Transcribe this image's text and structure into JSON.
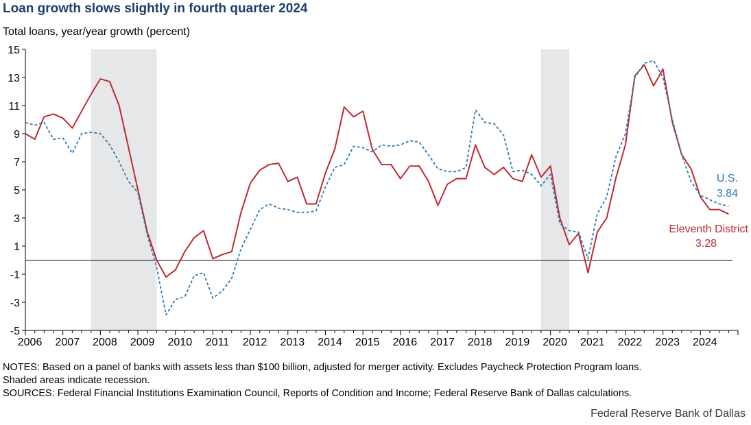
{
  "title": "Loan growth slows slightly in fourth quarter 2024",
  "subtitle": "Total loans, year/year growth (percent)",
  "notes": {
    "line1": "NOTES: Based on a panel of banks with assets less than $100 billion, adjusted for merger activity. Excludes Paycheck Protection Program loans.",
    "line2": "Shaded areas indicate recession.",
    "line3": "SOURCES: Federal Financial Institutions  Examination Council, Reports of Condition and Income; Federal Reserve Bank of Dallas calculations."
  },
  "brand": "Federal Reserve Bank of Dallas",
  "colors": {
    "us": "#2a78b8",
    "eleventh": "#c0282e",
    "recession": "#e6e7e9",
    "title": "#1f3d6e"
  },
  "chart_data": {
    "type": "line",
    "title": "Loan growth slows slightly in fourth quarter 2024",
    "ylabel": "Total loans, year/year growth (percent)",
    "ylim": [
      -5,
      15
    ],
    "xlim": [
      2006.0,
      2025.0
    ],
    "yticks": [
      "15",
      "13",
      "11",
      "9",
      "7",
      "5",
      "3",
      "1",
      "-1",
      "-3",
      "-5"
    ],
    "ytick_values": [
      15,
      13,
      11,
      9,
      7,
      5,
      3,
      1,
      -1,
      -3,
      -5
    ],
    "xticks": [
      "2006",
      "2007",
      "2008",
      "2009",
      "2010",
      "2011",
      "2012",
      "2013",
      "2014",
      "2015",
      "2016",
      "2017",
      "2018",
      "2019",
      "2020",
      "2021",
      "2022",
      "2023",
      "2024"
    ],
    "zero_line": 0,
    "recessions": [
      [
        2007.75,
        2009.5
      ],
      [
        2019.75,
        2020.5
      ]
    ],
    "series": [
      {
        "name": "U.S.",
        "end_label": "U.S.",
        "end_value": "3.84",
        "style": "dashed",
        "color": "#2a78b8",
        "x": [
          2006.0,
          2006.25,
          2006.5,
          2006.75,
          2007.0,
          2007.25,
          2007.5,
          2007.75,
          2008.0,
          2008.25,
          2008.5,
          2008.75,
          2009.0,
          2009.25,
          2009.5,
          2009.75,
          2010.0,
          2010.25,
          2010.5,
          2010.75,
          2011.0,
          2011.25,
          2011.5,
          2011.75,
          2012.0,
          2012.25,
          2012.5,
          2012.75,
          2013.0,
          2013.25,
          2013.5,
          2013.75,
          2014.0,
          2014.25,
          2014.5,
          2014.75,
          2015.0,
          2015.25,
          2015.5,
          2015.75,
          2016.0,
          2016.25,
          2016.5,
          2016.75,
          2017.0,
          2017.25,
          2017.5,
          2017.75,
          2018.0,
          2018.25,
          2018.5,
          2018.75,
          2019.0,
          2019.25,
          2019.5,
          2019.75,
          2020.0,
          2020.25,
          2020.5,
          2020.75,
          2021.0,
          2021.25,
          2021.5,
          2021.75,
          2022.0,
          2022.25,
          2022.5,
          2022.75,
          2023.0,
          2023.25,
          2023.5,
          2023.75,
          2024.0,
          2024.25,
          2024.5,
          2024.75
        ],
        "values": [
          9.8,
          9.6,
          9.8,
          8.6,
          8.7,
          7.6,
          9.0,
          9.1,
          9.0,
          8.2,
          7.0,
          5.6,
          4.8,
          1.8,
          -0.5,
          -3.9,
          -2.8,
          -2.6,
          -1.1,
          -0.9,
          -2.7,
          -2.2,
          -1.3,
          0.8,
          2.2,
          3.6,
          4.0,
          3.7,
          3.6,
          3.4,
          3.4,
          3.5,
          5.2,
          6.6,
          6.8,
          8.1,
          8.0,
          7.7,
          8.2,
          8.1,
          8.2,
          8.5,
          8.4,
          7.5,
          6.5,
          6.3,
          6.3,
          6.6,
          10.7,
          9.8,
          9.7,
          8.9,
          6.3,
          6.4,
          6.1,
          5.3,
          6.1,
          2.6,
          2.1,
          2.0,
          0.1,
          3.3,
          4.5,
          7.4,
          9.0,
          13.0,
          14.0,
          14.2,
          13.0,
          10.0,
          7.5,
          5.6,
          4.6,
          4.3,
          4.0,
          3.84
        ]
      },
      {
        "name": "Eleventh District",
        "end_label": "Eleventh District",
        "end_value": "3.28",
        "style": "solid",
        "color": "#c0282e",
        "x": [
          2006.0,
          2006.25,
          2006.5,
          2006.75,
          2007.0,
          2007.25,
          2007.5,
          2007.75,
          2008.0,
          2008.25,
          2008.5,
          2008.75,
          2009.0,
          2009.25,
          2009.5,
          2009.75,
          2010.0,
          2010.25,
          2010.5,
          2010.75,
          2011.0,
          2011.25,
          2011.5,
          2011.75,
          2012.0,
          2012.25,
          2012.5,
          2012.75,
          2013.0,
          2013.25,
          2013.5,
          2013.75,
          2014.0,
          2014.25,
          2014.5,
          2014.75,
          2015.0,
          2015.25,
          2015.5,
          2015.75,
          2016.0,
          2016.25,
          2016.5,
          2016.75,
          2017.0,
          2017.25,
          2017.5,
          2017.75,
          2018.0,
          2018.25,
          2018.5,
          2018.75,
          2019.0,
          2019.25,
          2019.5,
          2019.75,
          2020.0,
          2020.25,
          2020.5,
          2020.75,
          2021.0,
          2021.25,
          2021.5,
          2021.75,
          2022.0,
          2022.25,
          2022.5,
          2022.75,
          2023.0,
          2023.25,
          2023.5,
          2023.75,
          2024.0,
          2024.25,
          2024.5,
          2024.75
        ],
        "values": [
          9.0,
          8.6,
          10.2,
          10.4,
          10.1,
          9.4,
          10.6,
          11.8,
          12.9,
          12.7,
          11.0,
          8.0,
          5.0,
          2.0,
          0.0,
          -1.2,
          -0.7,
          0.6,
          1.6,
          2.1,
          0.1,
          0.4,
          0.6,
          3.4,
          5.5,
          6.4,
          6.8,
          6.9,
          5.6,
          5.9,
          4.0,
          4.0,
          6.2,
          7.9,
          10.9,
          10.2,
          10.6,
          7.9,
          6.8,
          6.8,
          5.8,
          6.7,
          6.7,
          5.6,
          3.9,
          5.4,
          5.8,
          5.8,
          8.2,
          6.6,
          6.1,
          6.6,
          5.8,
          5.6,
          7.5,
          5.9,
          6.7,
          3.0,
          1.1,
          1.9,
          -0.9,
          2.0,
          3.0,
          5.9,
          8.2,
          13.1,
          13.9,
          12.4,
          13.6,
          9.8,
          7.5,
          6.5,
          4.5,
          3.6,
          3.6,
          3.28
        ]
      }
    ]
  }
}
